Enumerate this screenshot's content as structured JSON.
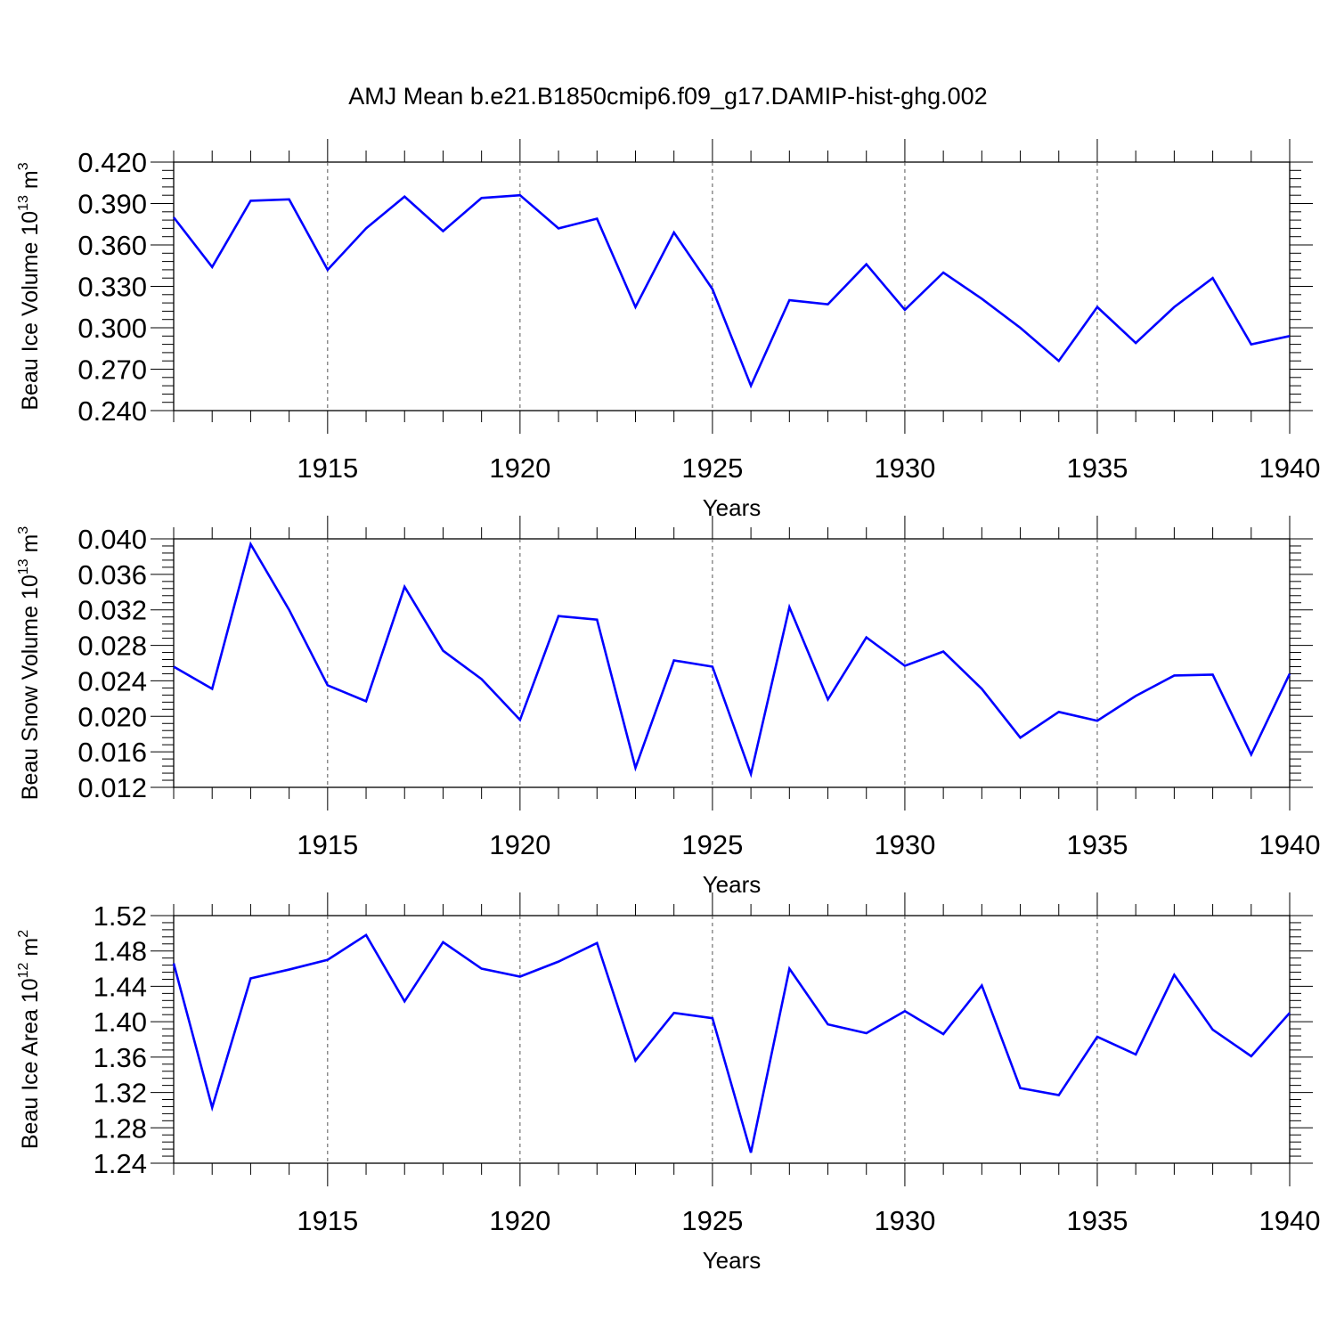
{
  "title": "AMJ Mean b.e21.B1850cmip6.f09_g17.DAMIP-hist-ghg.002",
  "line_color": "#0000ff",
  "chart_data": [
    {
      "type": "line",
      "ylabel": "Beau Ice Volume 10",
      "ylabel_exp": "13",
      "ylabel_unit": " m",
      "ylabel_unit_exp": "3",
      "xlabel": "Years",
      "xlim": [
        1911,
        1940
      ],
      "ylim": [
        0.24,
        0.42
      ],
      "yticks": [
        0.24,
        0.27,
        0.3,
        0.33,
        0.36,
        0.39,
        0.42
      ],
      "ytick_labels": [
        "0.240",
        "0.270",
        "0.300",
        "0.330",
        "0.360",
        "0.390",
        "0.420"
      ],
      "xticks": [
        1915,
        1920,
        1925,
        1930,
        1935,
        1940
      ],
      "xtick_labels": [
        "1915",
        "1920",
        "1925",
        "1930",
        "1935",
        "1940"
      ],
      "grid": "vertical dashed at major x ticks",
      "series": [
        {
          "x": [
            1911,
            1912,
            1913,
            1914,
            1915,
            1916,
            1917,
            1918,
            1919,
            1920,
            1921,
            1922,
            1923,
            1924,
            1925,
            1926,
            1927,
            1928,
            1929,
            1930,
            1931,
            1932,
            1933,
            1934,
            1935,
            1936,
            1937,
            1938,
            1939,
            1940
          ],
          "values": [
            0.38,
            0.344,
            0.392,
            0.393,
            0.342,
            0.372,
            0.395,
            0.37,
            0.394,
            0.396,
            0.372,
            0.379,
            0.315,
            0.369,
            0.328,
            0.258,
            0.32,
            0.317,
            0.346,
            0.313,
            0.34,
            0.321,
            0.3,
            0.276,
            0.315,
            0.289,
            0.315,
            0.336,
            0.288,
            0.294
          ]
        }
      ]
    },
    {
      "type": "line",
      "ylabel": "Beau Snow Volume 10",
      "ylabel_exp": "13",
      "ylabel_unit": " m",
      "ylabel_unit_exp": "3",
      "xlabel": "Years",
      "xlim": [
        1911,
        1940
      ],
      "ylim": [
        0.012,
        0.04
      ],
      "yticks": [
        0.012,
        0.016,
        0.02,
        0.024,
        0.028,
        0.032,
        0.036,
        0.04
      ],
      "ytick_labels": [
        "0.012",
        "0.016",
        "0.020",
        "0.024",
        "0.028",
        "0.032",
        "0.036",
        "0.040"
      ],
      "xticks": [
        1915,
        1920,
        1925,
        1930,
        1935,
        1940
      ],
      "xtick_labels": [
        "1915",
        "1920",
        "1925",
        "1930",
        "1935",
        "1940"
      ],
      "grid": "vertical dashed at major x ticks",
      "series": [
        {
          "x": [
            1911,
            1912,
            1913,
            1914,
            1915,
            1916,
            1917,
            1918,
            1919,
            1920,
            1921,
            1922,
            1923,
            1924,
            1925,
            1926,
            1927,
            1928,
            1929,
            1930,
            1931,
            1932,
            1933,
            1934,
            1935,
            1936,
            1937,
            1938,
            1939,
            1940
          ],
          "values": [
            0.0256,
            0.0231,
            0.0394,
            0.032,
            0.0235,
            0.0217,
            0.0346,
            0.0274,
            0.0242,
            0.0196,
            0.0313,
            0.0309,
            0.0142,
            0.0263,
            0.0256,
            0.0135,
            0.0323,
            0.0219,
            0.0289,
            0.0257,
            0.0273,
            0.0231,
            0.0176,
            0.0205,
            0.0195,
            0.0223,
            0.0246,
            0.0247,
            0.0157,
            0.0248
          ]
        }
      ]
    },
    {
      "type": "line",
      "ylabel": "Beau Ice Area 10",
      "ylabel_exp": "12",
      "ylabel_unit": " m",
      "ylabel_unit_exp": "2",
      "xlabel": "Years",
      "xlim": [
        1911,
        1940
      ],
      "ylim": [
        1.24,
        1.52
      ],
      "yticks": [
        1.24,
        1.28,
        1.32,
        1.36,
        1.4,
        1.44,
        1.48,
        1.52
      ],
      "ytick_labels": [
        "1.24",
        "1.28",
        "1.32",
        "1.36",
        "1.40",
        "1.44",
        "1.48",
        "1.52"
      ],
      "xticks": [
        1915,
        1920,
        1925,
        1930,
        1935,
        1940
      ],
      "xtick_labels": [
        "1915",
        "1920",
        "1925",
        "1930",
        "1935",
        "1940"
      ],
      "grid": "vertical dashed at major x ticks",
      "series": [
        {
          "x": [
            1911,
            1912,
            1913,
            1914,
            1915,
            1916,
            1917,
            1918,
            1919,
            1920,
            1921,
            1922,
            1923,
            1924,
            1925,
            1926,
            1927,
            1928,
            1929,
            1930,
            1931,
            1932,
            1933,
            1934,
            1935,
            1936,
            1937,
            1938,
            1939,
            1940
          ],
          "values": [
            1.466,
            1.303,
            1.449,
            1.459,
            1.47,
            1.498,
            1.423,
            1.49,
            1.46,
            1.451,
            1.468,
            1.489,
            1.356,
            1.41,
            1.404,
            1.252,
            1.46,
            1.397,
            1.387,
            1.412,
            1.386,
            1.441,
            1.325,
            1.317,
            1.383,
            1.363,
            1.453,
            1.391,
            1.361,
            1.41
          ]
        }
      ]
    }
  ]
}
